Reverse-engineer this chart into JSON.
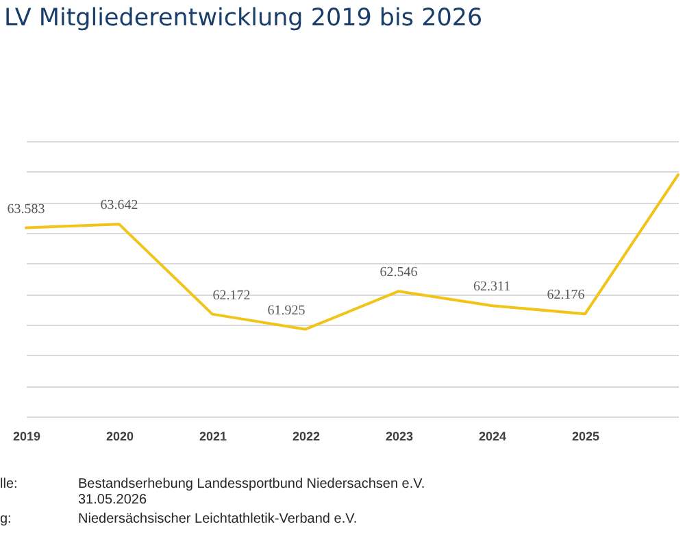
{
  "chart_data": {
    "type": "line",
    "title": "LV Mitgliederentwicklung 2019 bis 2026",
    "categories": [
      "2019",
      "2020",
      "2021",
      "2022",
      "2023",
      "2024",
      "2025",
      null
    ],
    "series": [
      {
        "color": "#f0c419",
        "values": [
          63583,
          63642,
          62172,
          61925,
          62546,
          62311,
          62176,
          64450
        ],
        "value_labels": [
          "63.583",
          "63.642",
          "62.172",
          "61.925",
          "62.546",
          "62.311",
          "62.176",
          null
        ]
      }
    ],
    "grid": "y",
    "tick_labels": "x",
    "line_style": "solid",
    "annotations": [
      "lle:",
      "Bestandserhebung Landessportbund Niedersachsen e.V.",
      "31.05.2026",
      "g:",
      "Niedersächsischer Leichtathletik-Verband e.V."
    ]
  }
}
